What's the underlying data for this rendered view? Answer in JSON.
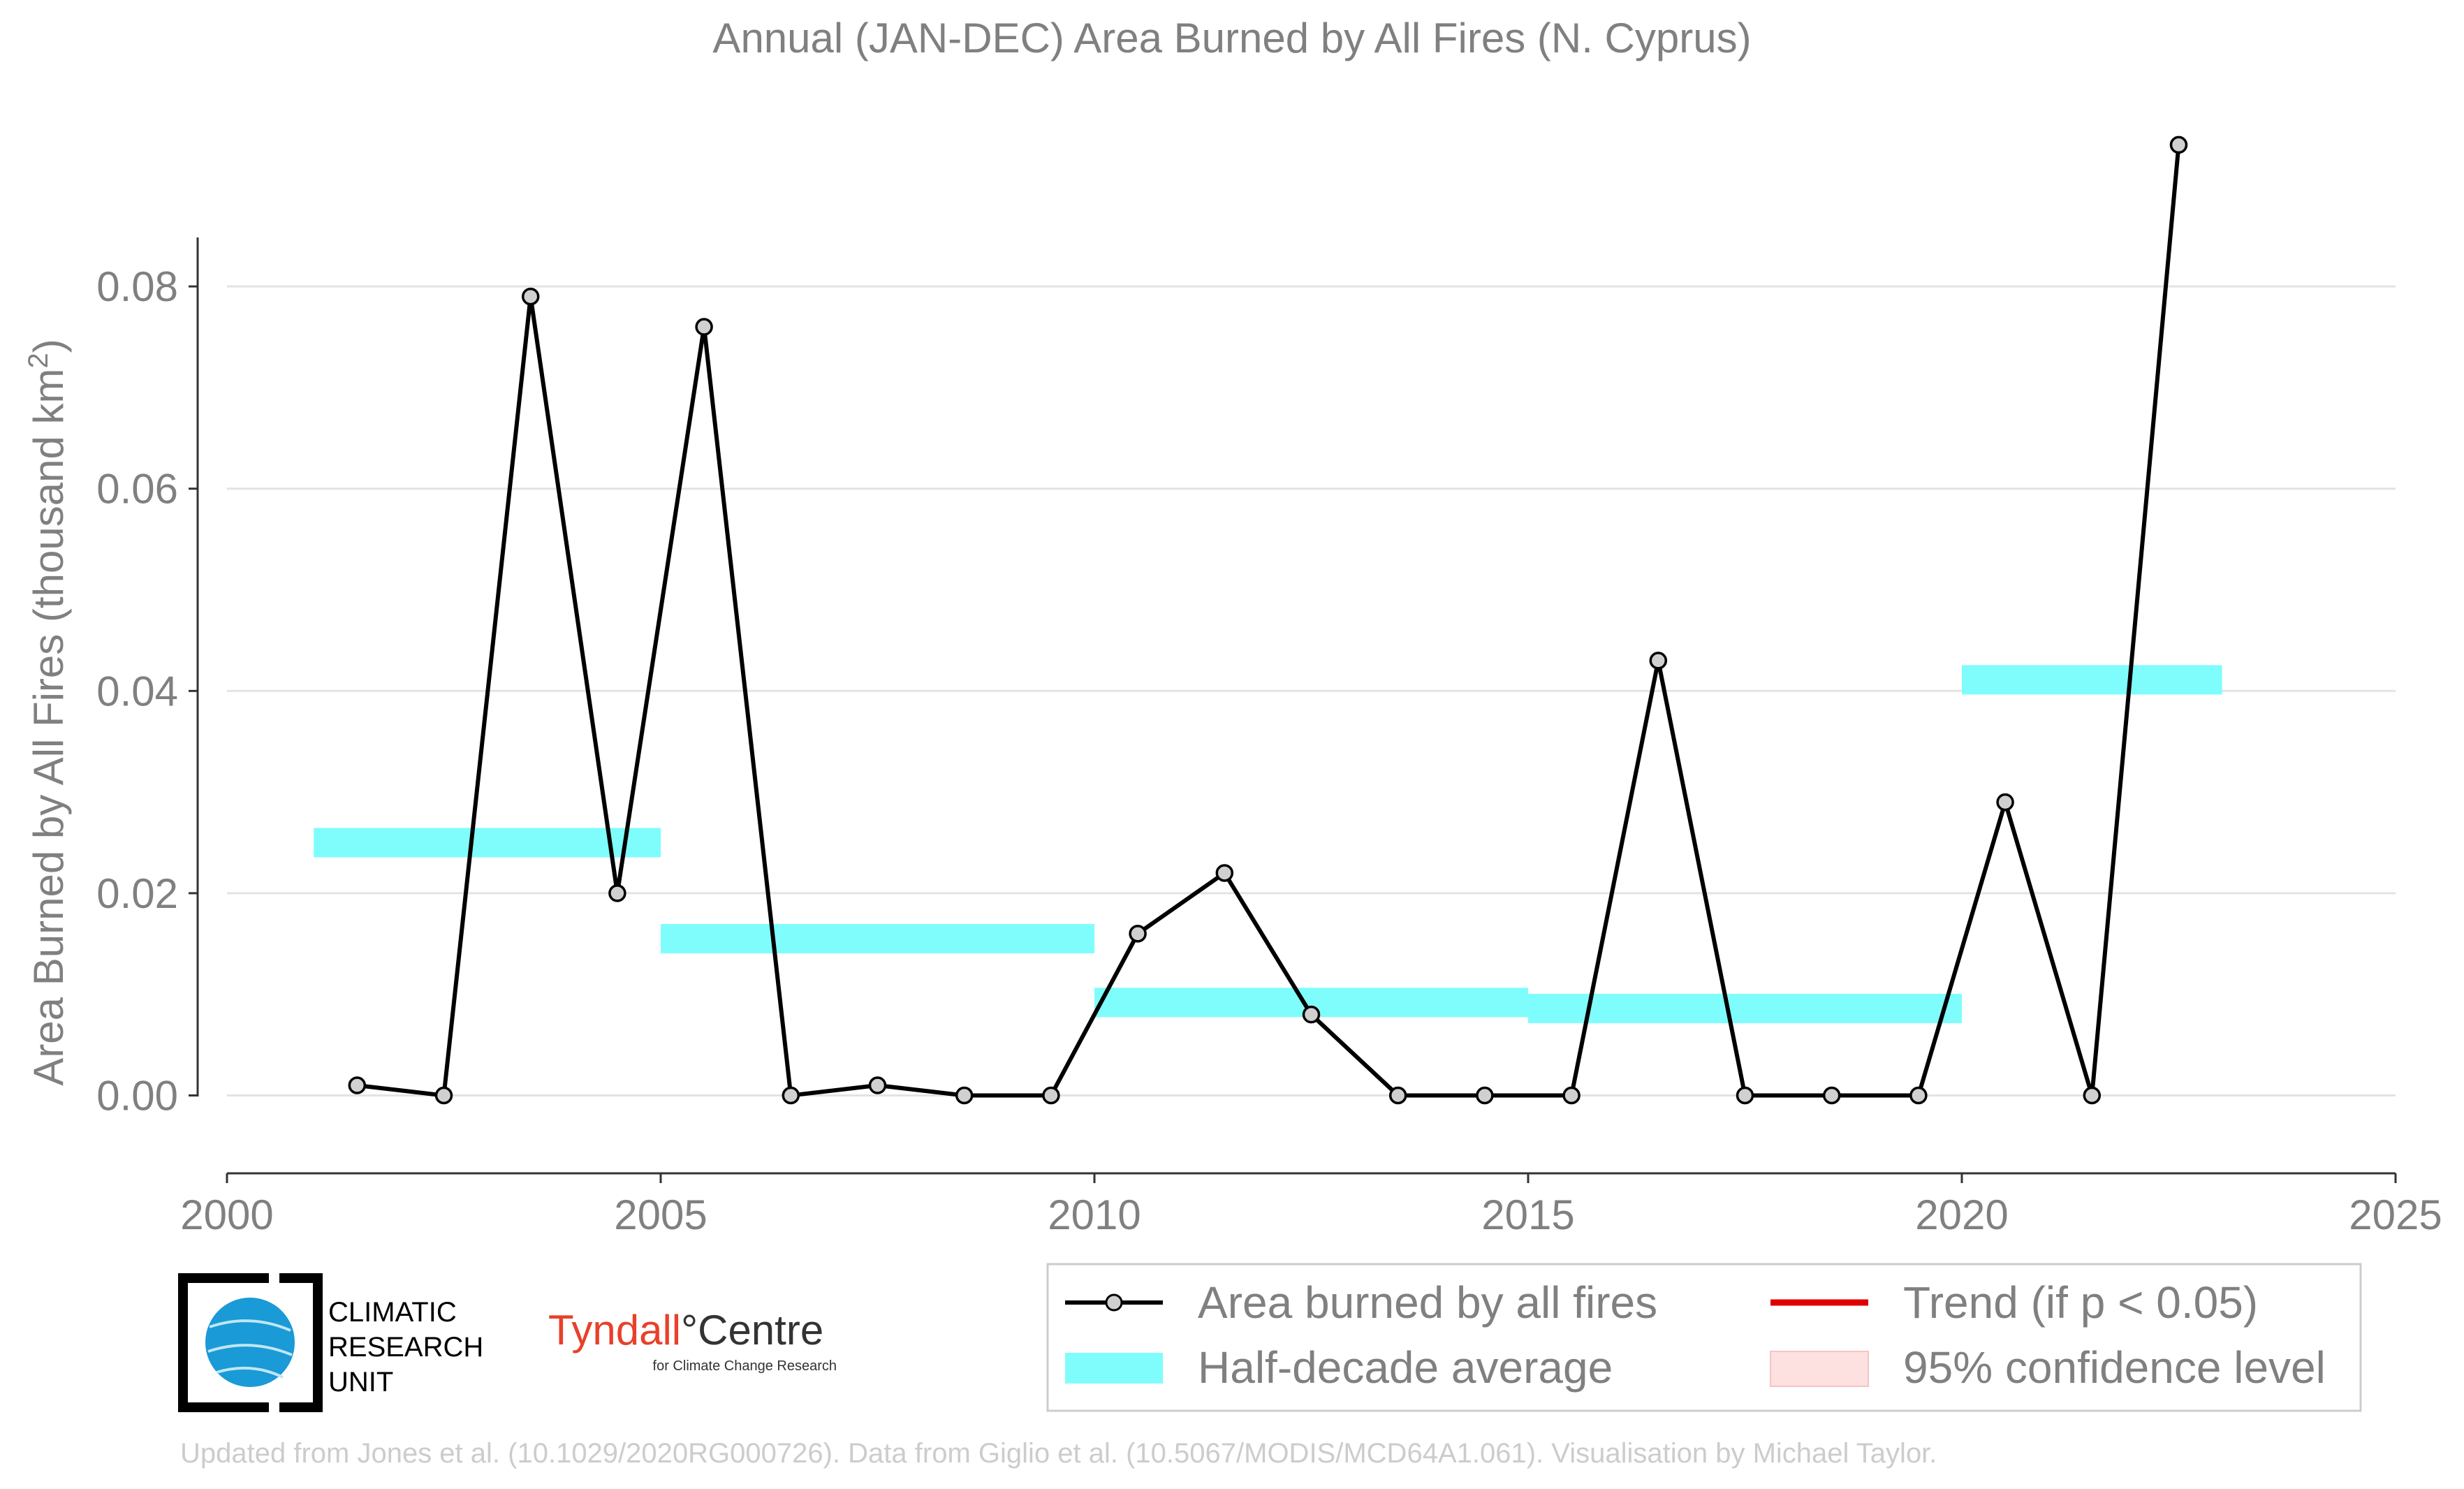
{
  "chart_data": {
    "type": "line",
    "title": "Annual (JAN-DEC) Area Burned by All Fires (N. Cyprus)",
    "ylabel": "Area Burned by All Fires (thousand km",
    "ylabel_sup": "2",
    "ylabel_end": ")",
    "xlim": [
      2000,
      2025
    ],
    "ylim": [
      -0.0077,
      0.099
    ],
    "x_ticks": [
      2000,
      2005,
      2010,
      2015,
      2020,
      2025
    ],
    "y_ticks": [
      0.0,
      0.02,
      0.04,
      0.06,
      0.08
    ],
    "y_tick_labels": [
      "0.00",
      "0.02",
      "0.04",
      "0.06",
      "0.08"
    ],
    "grid": true,
    "series": [
      {
        "name": "Area burned by all fires",
        "color": "#000000",
        "marker_fill": "#d0d0d0",
        "x": [
          2001.5,
          2002.5,
          2003.5,
          2004.5,
          2005.5,
          2006.5,
          2007.5,
          2008.5,
          2009.5,
          2010.5,
          2011.5,
          2012.5,
          2013.5,
          2014.5,
          2015.5,
          2016.5,
          2017.5,
          2018.5,
          2019.5,
          2020.5,
          2021.5,
          2022.5
        ],
        "y": [
          0.001,
          0.0,
          0.079,
          0.02,
          0.076,
          0.0,
          0.001,
          0.0,
          0.0,
          0.016,
          0.022,
          0.008,
          0.0,
          0.0,
          0.0,
          0.043,
          0.0,
          0.0,
          0.0,
          0.029,
          0.0,
          0.094
        ]
      }
    ],
    "half_decade_averages": {
      "name": "Half-decade average",
      "color": "#7ffdfd",
      "segments": [
        {
          "x0": 2001,
          "x1": 2005,
          "value": 0.025
        },
        {
          "x0": 2005,
          "x1": 2010,
          "value": 0.0155
        },
        {
          "x0": 2010,
          "x1": 2015,
          "value": 0.0092
        },
        {
          "x0": 2015,
          "x1": 2020,
          "value": 0.0086
        },
        {
          "x0": 2020,
          "x1": 2023,
          "value": 0.0411
        }
      ]
    },
    "legend": {
      "placement": "bottom-right",
      "entries": [
        {
          "label": "Area burned by all fires",
          "kind": "line-marker",
          "color": "#000000"
        },
        {
          "label": "Trend (if p < 0.05)",
          "kind": "line",
          "color": "#e00000"
        },
        {
          "label": "Half-decade average",
          "kind": "band",
          "color": "#7ffdfd"
        },
        {
          "label": "95% confidence level",
          "kind": "patch",
          "color": "#fde0e0"
        }
      ]
    }
  },
  "logos": {
    "cru_line1": "CLIMATIC",
    "cru_line2": "RESEARCH",
    "cru_line3": "UNIT",
    "tyndall_name": "Tyndall",
    "tyndall_degree": "°",
    "tyndall_centre": "Centre",
    "tyndall_sub": "for Climate Change Research"
  },
  "credit": "Updated from Jones et al. (10.1029/2020RG000726). Data from Giglio et al. (10.5067/MODIS/MCD64A1.061). Visualisation by Michael Taylor."
}
